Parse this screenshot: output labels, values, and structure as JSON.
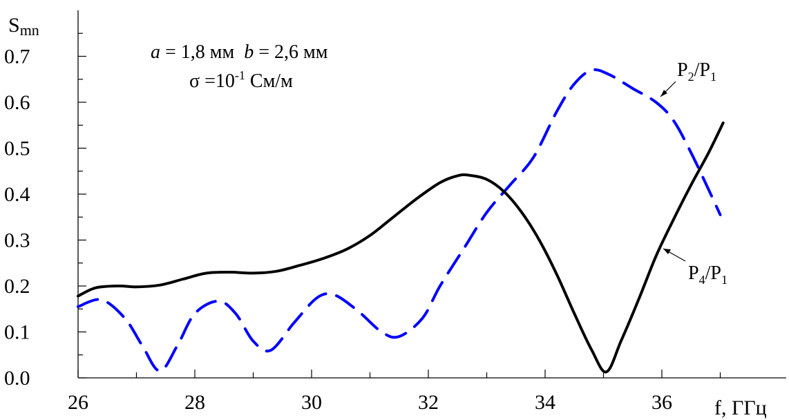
{
  "chart_data": {
    "type": "line",
    "title": "",
    "xlabel": "f, ГГц",
    "ylabel": "S",
    "ylabel_sub": "mn",
    "xlim": [
      26,
      37.6
    ],
    "ylim": [
      0,
      0.8
    ],
    "x_ticks": [
      26,
      28,
      30,
      32,
      34,
      36
    ],
    "x_tick_labels": [
      "26",
      "28",
      "30",
      "32",
      "34",
      "36"
    ],
    "y_ticks": [
      0,
      0.1,
      0.2,
      0.3,
      0.4,
      0.5,
      0.6,
      0.7
    ],
    "y_tick_labels": [
      "0.0",
      "0.1",
      "0.2",
      "0.3",
      "0.4",
      "0.5",
      "0.6",
      "0.7"
    ],
    "grid": false,
    "annotations": {
      "params_line1": "a = 1,8 мм  b = 2,6 мм",
      "params_line1_parts": [
        "a",
        " = 1,8 мм  ",
        "b",
        " = 2,6 мм"
      ],
      "params_line2_base": "σ =10",
      "params_line2_exp": "-1",
      "params_line2_unit": " См/м"
    },
    "series": [
      {
        "name": "P2/P1",
        "label_main": "P",
        "label_sub1": "2",
        "label_mid": "/P",
        "label_sub2": "1",
        "color": "#0000ff",
        "style": "dashed",
        "x": [
          26.0,
          26.4,
          26.8,
          27.1,
          27.4,
          27.7,
          28.0,
          28.4,
          28.7,
          29.0,
          29.3,
          29.7,
          30.1,
          30.4,
          30.8,
          31.2,
          31.5,
          31.9,
          32.2,
          32.6,
          33.0,
          33.4,
          33.8,
          34.2,
          34.5,
          34.8,
          35.1,
          35.5,
          35.9,
          36.2,
          36.5,
          36.8,
          37.0
        ],
        "y": [
          0.155,
          0.17,
          0.13,
          0.07,
          0.015,
          0.07,
          0.14,
          0.167,
          0.14,
          0.08,
          0.06,
          0.12,
          0.175,
          0.18,
          0.145,
          0.1,
          0.09,
          0.13,
          0.2,
          0.28,
          0.36,
          0.42,
          0.48,
          0.58,
          0.64,
          0.67,
          0.66,
          0.63,
          0.6,
          0.56,
          0.49,
          0.41,
          0.355
        ]
      },
      {
        "name": "P4/P1",
        "label_main": "P",
        "label_sub1": "4",
        "label_mid": "/P",
        "label_sub2": "1",
        "color": "#000000",
        "style": "solid",
        "x": [
          26.0,
          26.3,
          26.7,
          27.0,
          27.4,
          27.8,
          28.2,
          28.6,
          29.0,
          29.4,
          29.8,
          30.2,
          30.6,
          31.0,
          31.4,
          31.8,
          32.2,
          32.5,
          32.7,
          33.0,
          33.3,
          33.6,
          33.9,
          34.2,
          34.5,
          34.8,
          35.05,
          35.3,
          35.6,
          35.9,
          36.2,
          36.5,
          36.8,
          37.05
        ],
        "y": [
          0.178,
          0.196,
          0.2,
          0.198,
          0.202,
          0.215,
          0.228,
          0.23,
          0.228,
          0.232,
          0.245,
          0.26,
          0.28,
          0.31,
          0.35,
          0.39,
          0.425,
          0.44,
          0.441,
          0.432,
          0.405,
          0.36,
          0.3,
          0.225,
          0.14,
          0.06,
          0.013,
          0.08,
          0.17,
          0.265,
          0.345,
          0.42,
          0.49,
          0.555
        ]
      }
    ]
  }
}
